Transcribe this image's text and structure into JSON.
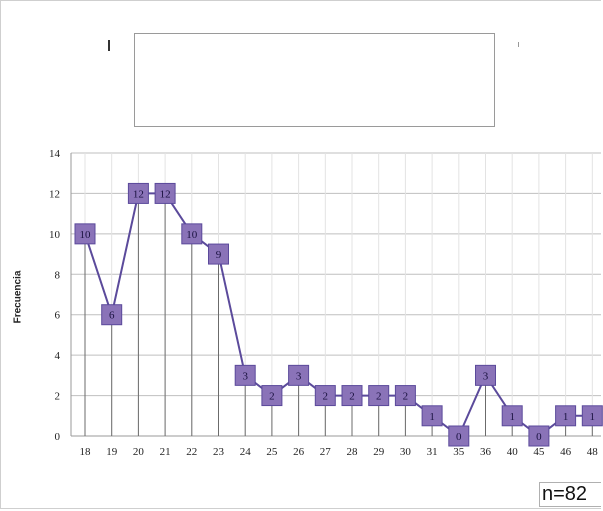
{
  "chart_data": {
    "type": "line",
    "categories": [
      "18",
      "19",
      "20",
      "21",
      "22",
      "23",
      "24",
      "25",
      "26",
      "27",
      "28",
      "29",
      "30",
      "31",
      "35",
      "36",
      "40",
      "45",
      "46",
      "48"
    ],
    "values": [
      10,
      6,
      12,
      12,
      10,
      9,
      3,
      2,
      3,
      2,
      2,
      2,
      2,
      1,
      0,
      3,
      1,
      0,
      1,
      1
    ],
    "title": "",
    "xlabel": "",
    "ylabel": "Frecuencia",
    "ylim": [
      0,
      14
    ],
    "yticks": [
      0,
      2,
      4,
      6,
      8,
      10,
      12,
      14
    ],
    "grid": true,
    "drop_lines": true,
    "data_labels": true,
    "colors": {
      "line": "#5b4a9b",
      "marker_fill": "#8a73b8",
      "marker_text": "#1a1240",
      "grid": "#bfbfbf",
      "drop": "#6b6b6b"
    }
  },
  "annotation": {
    "sample_size": "n=82"
  }
}
